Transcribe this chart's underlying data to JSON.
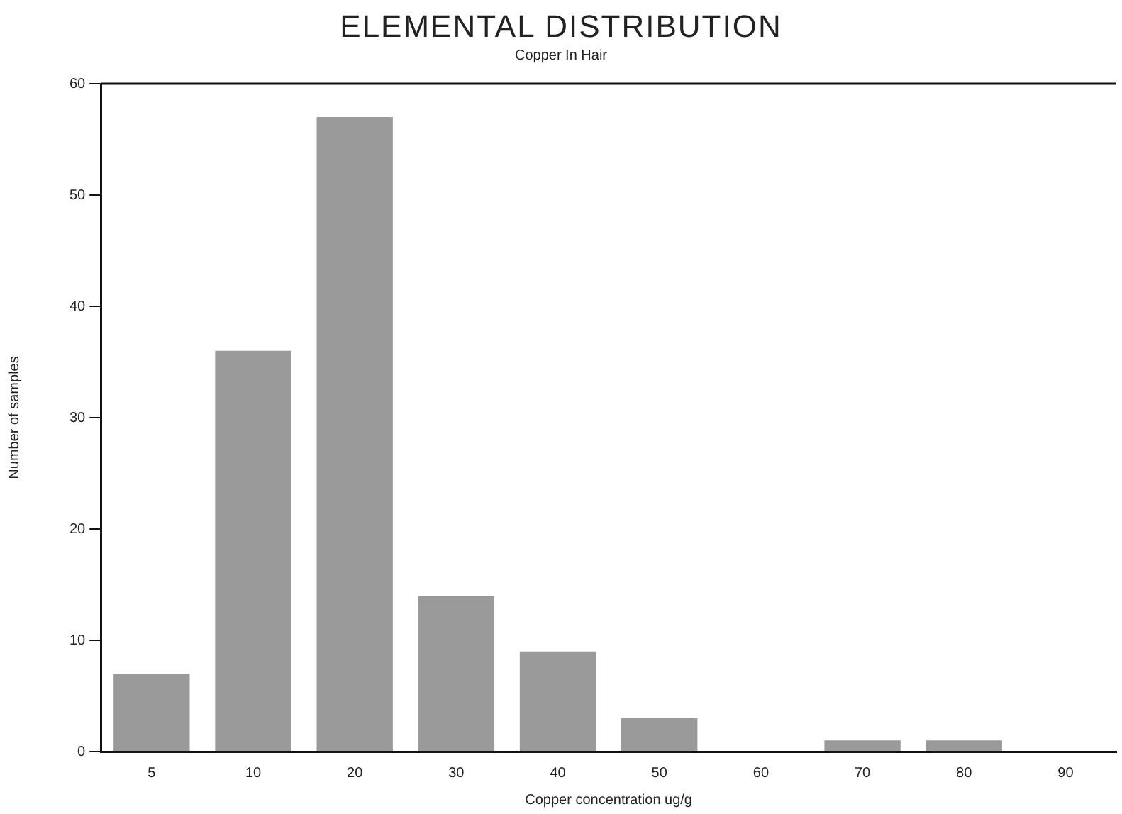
{
  "chart_data": {
    "type": "bar",
    "title": "ELEMENTAL DISTRIBUTION",
    "subtitle": "Copper In Hair",
    "xlabel": "Copper concentration ug/g",
    "ylabel": "Number of samples",
    "categories": [
      "5",
      "10",
      "20",
      "30",
      "40",
      "50",
      "60",
      "70",
      "80",
      "90"
    ],
    "values": [
      7,
      36,
      57,
      14,
      9,
      3,
      0,
      1,
      1,
      0
    ],
    "color": "#9a9a9a",
    "ylim": [
      0,
      60
    ],
    "yticks": [
      0,
      10,
      20,
      30,
      40,
      50,
      60
    ],
    "grid": false,
    "legend": false
  }
}
